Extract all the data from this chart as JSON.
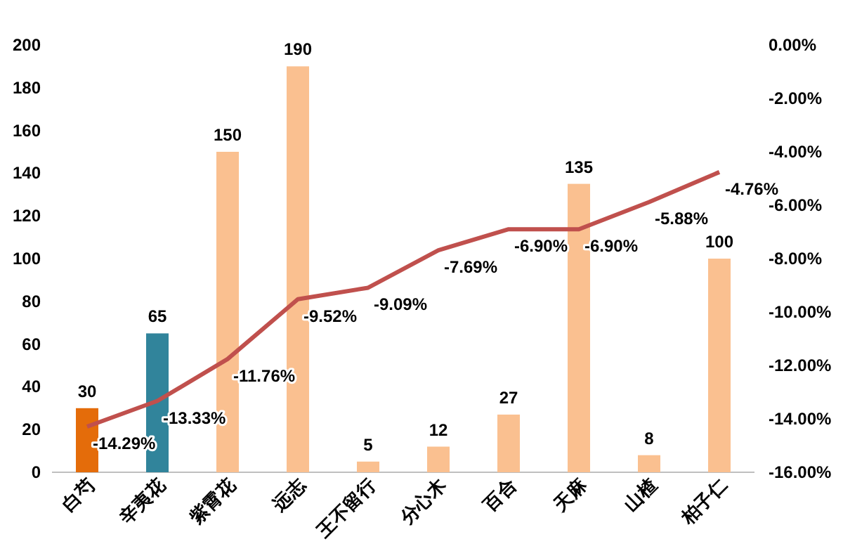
{
  "chart_data": {
    "type": "bar",
    "categories": [
      "白芍",
      "辛夷花",
      "紫霄花",
      "远志",
      "王不留行",
      "分心木",
      "百合",
      "天麻",
      "山楂",
      "柏子仁"
    ],
    "ylim": [
      0,
      200
    ],
    "yticks": [
      0,
      20,
      40,
      60,
      80,
      100,
      120,
      140,
      160,
      180,
      200
    ],
    "y2lim": [
      -16,
      0
    ],
    "y2ticks": [
      {
        "value": -16,
        "label": "-16.00%"
      },
      {
        "value": -14,
        "label": "-14.00%"
      },
      {
        "value": -12,
        "label": "-12.00%"
      },
      {
        "value": -10,
        "label": "-10.00%"
      },
      {
        "value": -8,
        "label": "-8.00%"
      },
      {
        "value": -6,
        "label": "-6.00%"
      },
      {
        "value": -4,
        "label": "-4.00%"
      },
      {
        "value": -2,
        "label": "-2.00%"
      },
      {
        "value": 0,
        "label": "0.00%"
      }
    ],
    "grid": false,
    "data_labels": true,
    "series": [
      {
        "colors": [
          "#e46c0a",
          "#31849b",
          "#fac090",
          "#fac090",
          "#fac090",
          "#fac090",
          "#fac090",
          "#fac090",
          "#fac090",
          "#fac090"
        ],
        "values": [
          30,
          65,
          150,
          190,
          5,
          12,
          27,
          135,
          8,
          100
        ]
      },
      {
        "type": "line",
        "axis": "y2",
        "color": "#c0504d",
        "marker": "none",
        "line_style": "solid",
        "values": [
          -14.29,
          -13.33,
          -11.76,
          -9.52,
          -9.09,
          -7.69,
          -6.9,
          -6.9,
          -5.88,
          -4.76
        ],
        "value_labels": [
          "-14.29%",
          "-13.33%",
          "-11.76%",
          "-9.52%",
          "-9.09%",
          "-7.69%",
          "-6.90%",
          "-6.90%",
          "-5.88%",
          "-4.76%"
        ]
      }
    ]
  }
}
